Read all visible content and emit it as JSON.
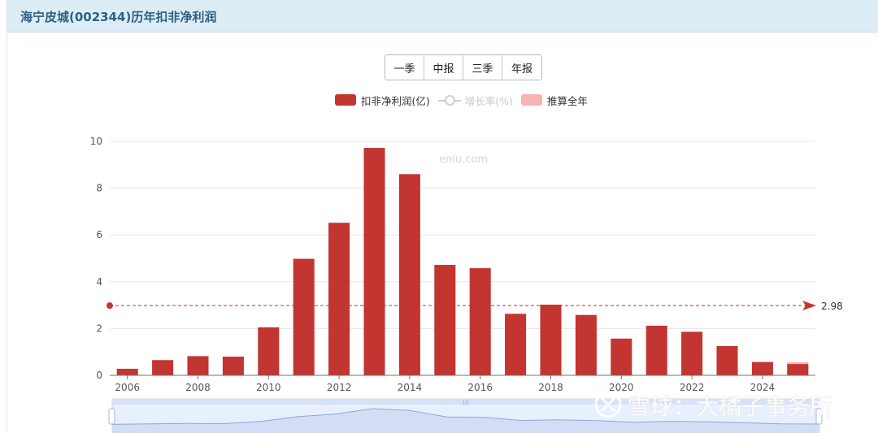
{
  "header": {
    "title": "海宁皮城(002344)历年扣非净利润"
  },
  "period_buttons": [
    "一季",
    "中报",
    "三季",
    "年报"
  ],
  "legend": [
    {
      "label": "扣非净利润(亿)",
      "color": "#c23531",
      "kind": "bar"
    },
    {
      "label": "增长率(%)",
      "color": "#cfcfcf",
      "kind": "line",
      "disabled": true
    },
    {
      "label": "推算全年",
      "color": "#f8b3b3",
      "kind": "bar"
    }
  ],
  "watermark_site": "eniu.com",
  "watermark_brand": "雪球：大橘子事务所",
  "chart_data": {
    "type": "bar",
    "categories": [
      "2006",
      "2007",
      "2008",
      "2009",
      "2010",
      "2011",
      "2012",
      "2013",
      "2014",
      "2015",
      "2016",
      "2017",
      "2018",
      "2019",
      "2020",
      "2021",
      "2022",
      "2023",
      "2024",
      "2025"
    ],
    "x_tick_labels": [
      "2006",
      "2008",
      "2010",
      "2012",
      "2014",
      "2016",
      "2018",
      "2020",
      "2022",
      "2024"
    ],
    "series": [
      {
        "name": "扣非净利润(亿)",
        "values": [
          0.28,
          0.65,
          0.82,
          0.8,
          2.05,
          4.98,
          6.52,
          9.72,
          8.6,
          4.72,
          4.58,
          2.63,
          3.02,
          2.58,
          1.57,
          2.12,
          1.86,
          1.25,
          0.57,
          0.48
        ],
        "color": "#c23531"
      },
      {
        "name": "推算全年",
        "values": [
          null,
          null,
          null,
          null,
          null,
          null,
          null,
          null,
          null,
          null,
          null,
          null,
          null,
          null,
          null,
          null,
          null,
          null,
          null,
          0.56
        ],
        "color": "#f8b3b3"
      }
    ],
    "average_line": {
      "value": 2.98,
      "label": "2.98",
      "color": "#c23531"
    },
    "ylim": [
      0,
      10
    ],
    "y_ticks": [
      0,
      2,
      4,
      6,
      8,
      10
    ],
    "grid": true,
    "legend_position": "top-center"
  }
}
